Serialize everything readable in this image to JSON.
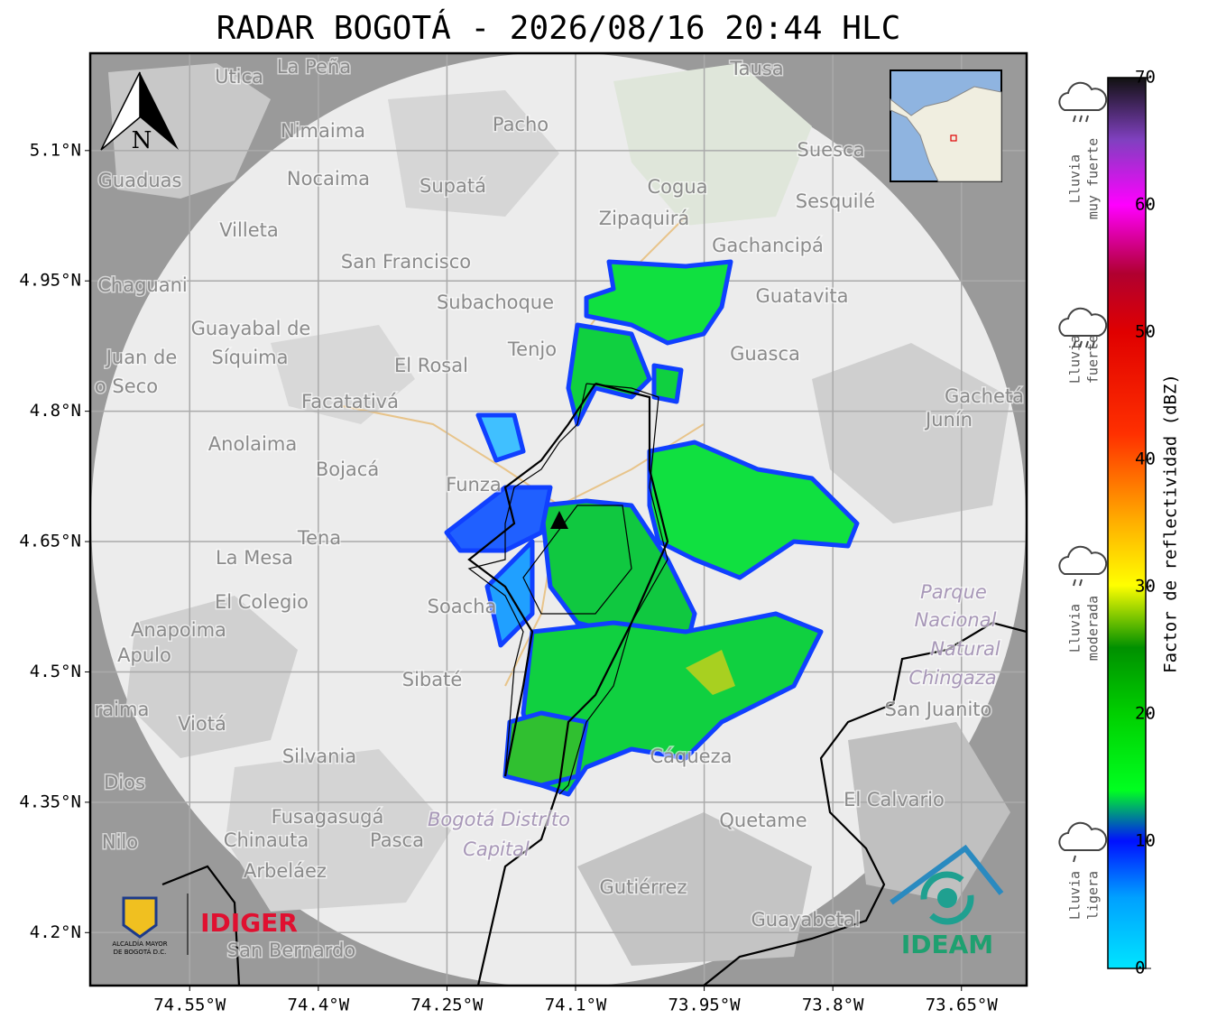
{
  "title": "RADAR BOGOTÁ - 2026/08/16 20:44 HLC",
  "map": {
    "xlim": [
      -74.666,
      -73.574
    ],
    "ylim": [
      4.139,
      5.212
    ],
    "xticks": [
      {
        "value": -74.55,
        "label": "74.55°W"
      },
      {
        "value": -74.4,
        "label": "74.4°W"
      },
      {
        "value": -74.25,
        "label": "74.25°W"
      },
      {
        "value": -74.1,
        "label": "74.1°W"
      },
      {
        "value": -73.95,
        "label": "73.95°W"
      },
      {
        "value": -73.8,
        "label": "73.8°W"
      },
      {
        "value": -73.65,
        "label": "73.65°W"
      }
    ],
    "yticks": [
      {
        "value": 5.1,
        "label": "5.1°N"
      },
      {
        "value": 4.95,
        "label": "4.95°N"
      },
      {
        "value": 4.8,
        "label": "4.8°N"
      },
      {
        "value": 4.65,
        "label": "4.65°N"
      },
      {
        "value": 4.5,
        "label": "4.5°N"
      },
      {
        "value": 4.35,
        "label": "4.35°N"
      },
      {
        "value": 4.2,
        "label": "4.2°N"
      }
    ],
    "north": "N",
    "places": [
      "La Peña",
      "Utica",
      "Tausa",
      "Pacho",
      "Nimaima",
      "Suesca",
      "Guaduas",
      "Nocaima",
      "Supatá",
      "Cogua",
      "Sesquilé",
      "Zipaquirá",
      "Villeta",
      "Gachancipá",
      "San Francisco",
      "Chaguani",
      "Guatavita",
      "Subachoque",
      "Guayabal de",
      "Síquima",
      "Tenjo",
      "Guasca",
      "Juan de",
      "El Rosal",
      "o Seco",
      "Gachetá",
      "Facatativá",
      "Junín",
      "Anolaima",
      "Bojacá",
      "Funza",
      "Tena",
      "La Mesa",
      "Parque",
      "El Colegio",
      "Soacha",
      "Nacional",
      "Anapoima",
      "Natural",
      "Apulo",
      "Chingaza",
      "Sibaté",
      "San Juanito",
      "raima",
      "Viotá",
      "Silvania",
      "Cáqueza",
      "Dios",
      "El Calvario",
      "Fusagasugá",
      "Bogotá Distrito",
      "Quetame",
      "Nilo",
      "Chinauta",
      "Pasca",
      "Capital",
      "Arbeláez",
      "Gutiérrez",
      "Guayabetal",
      "San Bernardo"
    ]
  },
  "colorbar": {
    "label": "Factor de reflectividad (dBZ)",
    "range": [
      0,
      70
    ],
    "ticks": [
      0,
      10,
      20,
      30,
      40,
      50,
      60,
      70
    ]
  },
  "rain_levels": [
    [
      "Lluvia",
      "muy fuerte"
    ],
    [
      "Lluvia",
      "fuerte"
    ],
    [
      "Lluvia",
      "moderada"
    ],
    [
      "Lluvia",
      "ligera"
    ]
  ],
  "logos": {
    "alcaldia": [
      "ALCALDÍA MAYOR",
      "DE BOGOTÁ D.C."
    ],
    "idiger": "IDIGER",
    "ideam": "IDEAM"
  }
}
